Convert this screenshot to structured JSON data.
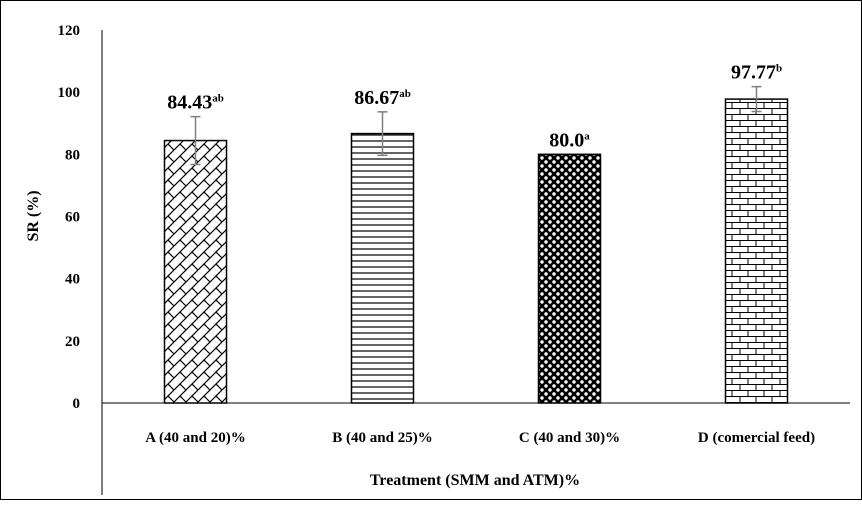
{
  "chart_data": {
    "type": "bar",
    "categories": [
      "A (40 and 20)%",
      "B (40 and 25)%",
      "C (40 and 30)%",
      "D (comercial feed)"
    ],
    "values": [
      84.43,
      86.67,
      80.0,
      97.77
    ],
    "errors": [
      7.7,
      7.0,
      0.0,
      4.0
    ],
    "value_labels": [
      "84.43",
      "86.67",
      "80.0",
      "97.77"
    ],
    "significance": [
      "ab",
      "ab",
      "a",
      "b"
    ],
    "patterns": [
      "diagonal-crosshatch",
      "horizontal-lines",
      "dots-on-black",
      "brick"
    ],
    "xlabel": "Treatment (SMM and ATM)%",
    "ylabel": "SR (%)",
    "ylim": [
      0,
      120
    ],
    "yticks": [
      0,
      20,
      40,
      60,
      80,
      100,
      120
    ],
    "grid": false,
    "legend": "none",
    "bar_fill": "#ffffff",
    "bar_stroke": "#000000",
    "error_color": "#808080"
  }
}
